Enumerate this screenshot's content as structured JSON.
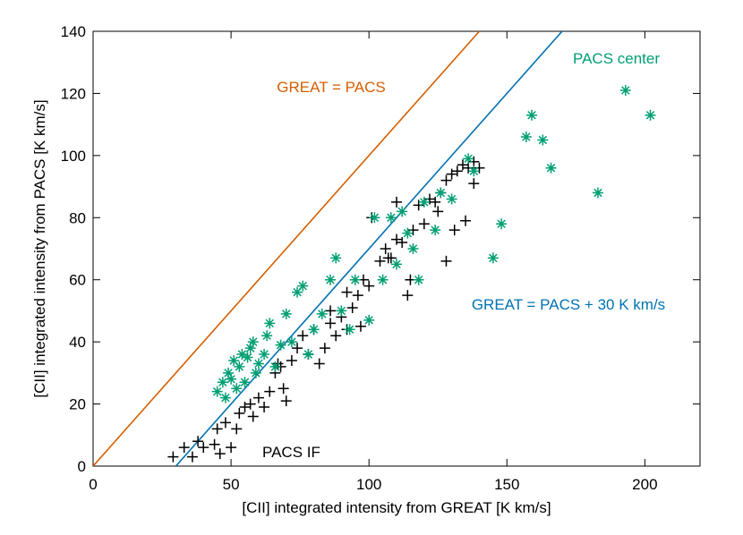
{
  "chart_data": {
    "type": "scatter",
    "x_label": "[CII] integrated intensity from GREAT [K km/s]",
    "y_label": "[CII] integrated intensity from PACS [K km/s]",
    "xlim": [
      0,
      220
    ],
    "ylim": [
      0,
      140
    ],
    "xticks": [
      0,
      50,
      100,
      150,
      200
    ],
    "yticks": [
      0,
      20,
      40,
      60,
      80,
      100,
      120,
      140
    ],
    "series": [
      {
        "name": "GREAT = PACS",
        "type": "line",
        "color": "#d55e00",
        "x": [
          0,
          140
        ],
        "values": [
          0,
          140
        ]
      },
      {
        "name": "GREAT = PACS + 30 K km/s",
        "type": "line",
        "color": "#0072b2",
        "x": [
          30,
          170
        ],
        "values": [
          0,
          140
        ]
      },
      {
        "name": "PACS IF",
        "type": "scatter",
        "marker": "plus",
        "color": "#000000",
        "x": [
          29,
          33,
          36,
          38,
          40,
          44,
          45,
          46,
          48,
          50,
          52,
          53,
          55,
          57,
          58,
          60,
          62,
          64,
          66,
          67,
          68,
          69,
          70,
          72,
          74,
          76,
          78,
          80,
          82,
          84,
          86,
          88,
          90,
          92,
          94,
          96,
          98,
          100,
          104,
          106,
          108,
          110,
          112,
          114,
          116,
          118,
          120,
          122,
          124,
          126,
          128,
          130,
          132,
          134,
          136,
          138,
          140,
          138,
          128,
          135,
          125,
          110,
          101,
          131,
          97,
          92,
          86,
          115,
          107
        ],
        "values": [
          3,
          6,
          3,
          8,
          6,
          7,
          12,
          4,
          14,
          6,
          12,
          17,
          19,
          20,
          16,
          22,
          19,
          24,
          30,
          33,
          32,
          25,
          21,
          34,
          38,
          42,
          36,
          44,
          33,
          38,
          46,
          42,
          48,
          56,
          51,
          55,
          60,
          58,
          66,
          70,
          67,
          73,
          72,
          55,
          76,
          84,
          78,
          86,
          85,
          88,
          92,
          94,
          95,
          97,
          96,
          98,
          96,
          91,
          66,
          79,
          82,
          85,
          80,
          76,
          45,
          44,
          50,
          60,
          67
        ]
      },
      {
        "name": "PACS center",
        "type": "scatter",
        "marker": "star",
        "color": "#009e73",
        "x": [
          45,
          47,
          48,
          49,
          50,
          51,
          52,
          53,
          54,
          55,
          56,
          57,
          58,
          59,
          60,
          62,
          63,
          64,
          66,
          68,
          70,
          72,
          74,
          76,
          78,
          80,
          83,
          86,
          88,
          90,
          93,
          95,
          100,
          102,
          105,
          108,
          110,
          112,
          114,
          116,
          118,
          120,
          124,
          126,
          130,
          136,
          138,
          145,
          148,
          157,
          159,
          163,
          166,
          183,
          193,
          202
        ],
        "values": [
          24,
          27,
          22,
          30,
          28,
          34,
          25,
          32,
          36,
          27,
          35,
          38,
          40,
          30,
          33,
          36,
          42,
          46,
          32,
          39,
          49,
          40,
          56,
          58,
          36,
          44,
          49,
          60,
          67,
          50,
          44,
          60,
          47,
          80,
          60,
          80,
          65,
          82,
          75,
          70,
          60,
          85,
          76,
          88,
          86,
          99,
          95,
          67,
          78,
          106,
          113,
          105,
          96,
          88,
          121,
          113
        ]
      }
    ]
  }
}
